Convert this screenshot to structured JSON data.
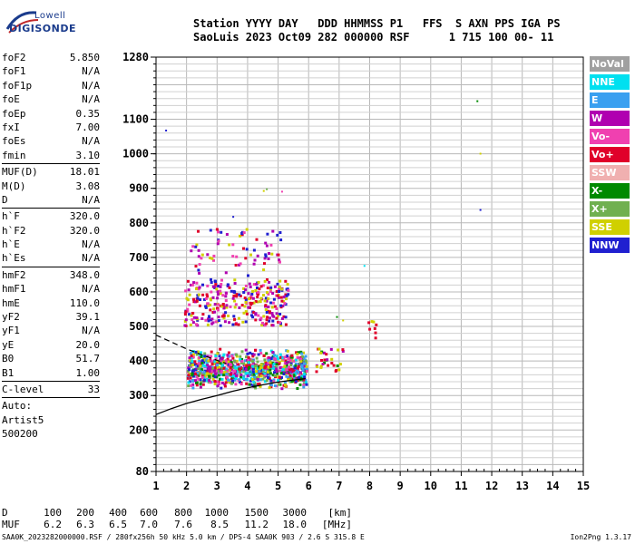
{
  "logo": {
    "line1": "Lowell",
    "line2": "DIGISONDE"
  },
  "header": {
    "line1": "Station YYYY DAY   DDD HHMMSS P1   FFS  S AXN PPS IGA PS",
    "line2": "SaoLuis 2023 Oct09 282 000000 RSF      1 715 100 00- 11"
  },
  "params": {
    "group1": [
      {
        "key": "foF2",
        "value": "5.850"
      },
      {
        "key": "foF1",
        "value": "N/A"
      },
      {
        "key": "foF1p",
        "value": "N/A"
      },
      {
        "key": "foE",
        "value": "N/A"
      },
      {
        "key": "foEp",
        "value": "0.35"
      },
      {
        "key": "fxI",
        "value": "7.00"
      },
      {
        "key": "foEs",
        "value": "N/A"
      },
      {
        "key": "fmin",
        "value": "3.10"
      }
    ],
    "group2": [
      {
        "key": "MUF(D)",
        "value": "18.01"
      },
      {
        "key": "M(D)",
        "value": "3.08"
      },
      {
        "key": "D",
        "value": "N/A"
      }
    ],
    "group3": [
      {
        "key": "h`F",
        "value": "320.0"
      },
      {
        "key": "h`F2",
        "value": "320.0"
      },
      {
        "key": "h`E",
        "value": "N/A"
      },
      {
        "key": "h`Es",
        "value": "N/A"
      }
    ],
    "group4": [
      {
        "key": "hmF2",
        "value": "348.0"
      },
      {
        "key": "hmF1",
        "value": "N/A"
      },
      {
        "key": "hmE",
        "value": "110.0"
      },
      {
        "key": "yF2",
        "value": "39.1"
      },
      {
        "key": "yF1",
        "value": "N/A"
      },
      {
        "key": "yE",
        "value": "20.0"
      },
      {
        "key": "B0",
        "value": "51.7"
      },
      {
        "key": "B1",
        "value": "1.00"
      }
    ],
    "clevel": {
      "key": "C-level",
      "value": "33"
    },
    "auto": [
      "Auto:",
      "Artist5",
      "500200"
    ]
  },
  "legend": [
    {
      "label": "NoVal",
      "color": "#a0a0a0"
    },
    {
      "label": "NNE",
      "color": "#00e0f0"
    },
    {
      "label": "E",
      "color": "#3aa0f0"
    },
    {
      "label": "W",
      "color": "#b000b0"
    },
    {
      "label": "Vo-",
      "color": "#f040b0"
    },
    {
      "label": "Vo+",
      "color": "#e0002a"
    },
    {
      "label": "SSW",
      "color": "#f0b0b0"
    },
    {
      "label": "X-",
      "color": "#008a00"
    },
    {
      "label": "X+",
      "color": "#70b050"
    },
    {
      "label": "SSE",
      "color": "#d0d000"
    },
    {
      "label": "NNW",
      "color": "#2020d0"
    }
  ],
  "muf_table": {
    "d_label": "D",
    "d_values": [
      "100",
      "200",
      "400",
      "600",
      "800",
      "1000",
      "1500",
      "3000"
    ],
    "d_unit": "[km]",
    "muf_label": "MUF",
    "muf_values": [
      "6.2",
      "6.3",
      "6.5",
      "7.0",
      "7.6",
      "8.5",
      "11.2",
      "18.0"
    ],
    "muf_unit": "[MHz]"
  },
  "footer": "SAA0K_2023282000000.RSF / 280fx256h 50 kHz 5.0 km / DPS-4 SAA0K 903 / 2.6 S 315.8 E",
  "version": "Ion2Png 1.3.17",
  "chart_data": {
    "type": "scatter",
    "xlim": [
      1,
      15
    ],
    "ylim": [
      80,
      1280
    ],
    "x_ticks": [
      "1",
      "2",
      "3",
      "4",
      "5",
      "6",
      "7",
      "8",
      "9",
      "10",
      "11",
      "12",
      "13",
      "14",
      "15"
    ],
    "y_ticks": [
      {
        "v": 80,
        "label": "80"
      },
      {
        "v": 200,
        "label": "200"
      },
      {
        "v": 300,
        "label": "300"
      },
      {
        "v": 400,
        "label": "400"
      },
      {
        "v": 500,
        "label": "500"
      },
      {
        "v": 600,
        "label": "600"
      },
      {
        "v": 700,
        "label": "700"
      },
      {
        "v": 800,
        "label": "800"
      },
      {
        "v": 900,
        "label": "900"
      },
      {
        "v": 1000,
        "label": "1000"
      },
      {
        "v": 1100,
        "label": "1100"
      },
      {
        "v": 1280,
        "label": "1280"
      }
    ],
    "grid": true,
    "legend_position": "right",
    "clusters": [
      {
        "x": [
          1.9,
          5.3
        ],
        "y": [
          505,
          640
        ],
        "n": 320,
        "colors": [
          "#b000b0",
          "#f040b0",
          "#e0002a",
          "#2020d0",
          "#d0d000"
        ]
      },
      {
        "x": [
          2.1,
          5.2
        ],
        "y": [
          650,
          790
        ],
        "n": 70,
        "colors": [
          "#b000b0",
          "#e0002a",
          "#2020d0",
          "#d0d000",
          "#f040b0"
        ]
      },
      {
        "x": [
          2.0,
          5.9
        ],
        "y": [
          320,
          440
        ],
        "n": 900,
        "colors": [
          "#d0d000",
          "#008a00",
          "#70b050",
          "#2020d0",
          "#b000b0",
          "#f040b0",
          "#e0002a",
          "#3aa0f0",
          "#00e0f0"
        ]
      },
      {
        "x": [
          6.2,
          7.1
        ],
        "y": [
          370,
          440
        ],
        "n": 30,
        "colors": [
          "#008a00",
          "#d0d000",
          "#e0002a",
          "#b000b0"
        ]
      },
      {
        "x": [
          7.9,
          8.2
        ],
        "y": [
          470,
          520
        ],
        "n": 8,
        "colors": [
          "#d0d000",
          "#e0002a"
        ]
      }
    ],
    "points": [
      {
        "x": 1.3,
        "y": 1070,
        "c": "#2020d0"
      },
      {
        "x": 11.5,
        "y": 1155,
        "c": "#008a00"
      },
      {
        "x": 11.6,
        "y": 1003,
        "c": "#d0d000"
      },
      {
        "x": 11.6,
        "y": 840,
        "c": "#2020d0"
      },
      {
        "x": 7.8,
        "y": 678,
        "c": "#00e0f0"
      },
      {
        "x": 4.5,
        "y": 895,
        "c": "#d0d000"
      },
      {
        "x": 4.6,
        "y": 900,
        "c": "#70b050"
      },
      {
        "x": 5.1,
        "y": 893,
        "c": "#f040b0"
      },
      {
        "x": 3.5,
        "y": 820,
        "c": "#2020d0"
      },
      {
        "x": 6.9,
        "y": 530,
        "c": "#008a00"
      },
      {
        "x": 7.1,
        "y": 520,
        "c": "#d0d000"
      }
    ],
    "profile_line": {
      "x": [
        1,
        1.5,
        2,
        2.5,
        3,
        3.5,
        4,
        4.5,
        5,
        5.5,
        5.9
      ],
      "y": [
        245,
        262,
        277,
        289,
        300,
        312,
        322,
        331,
        339,
        345,
        349
      ]
    },
    "dashed_line": {
      "x": [
        1,
        1.5,
        2,
        2.5,
        3,
        3.3
      ],
      "y": [
        475,
        455,
        435,
        418,
        402,
        393
      ]
    }
  }
}
